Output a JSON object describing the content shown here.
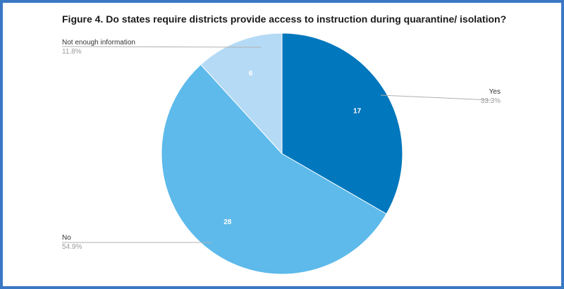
{
  "chart_data": {
    "type": "pie",
    "title": "Figure 4. Do states require districts provide access to instruction during quarantine/ isolation?",
    "slices": [
      {
        "label": "Yes",
        "value": 17,
        "percent": "33.3%",
        "color": "#0177bd"
      },
      {
        "label": "No",
        "value": 28,
        "percent": "54.9%",
        "color": "#5dbaeb"
      },
      {
        "label": "Not enough information",
        "value": 6,
        "percent": "11.8%",
        "color": "#b5daf5"
      }
    ]
  },
  "colors": {
    "frame_border": "#3a78c4",
    "leader_line": "#b0b0b0"
  }
}
